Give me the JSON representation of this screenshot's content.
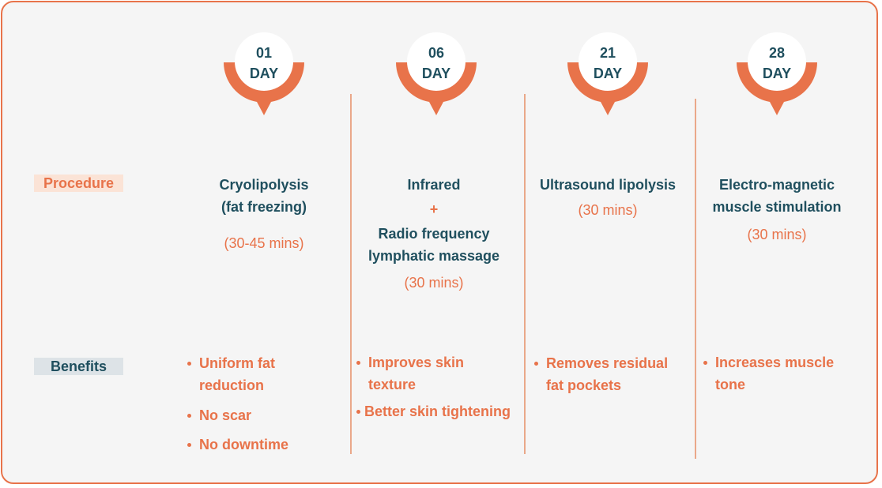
{
  "row_labels": {
    "procedure": "Procedure",
    "benefits": "Benefits"
  },
  "colors": {
    "accent": "#e8734a",
    "dark_teal": "#1f4f5e",
    "panel_bg": "#f5f5f5"
  },
  "columns": [
    {
      "day_number": "01",
      "day_label": "DAY",
      "procedure_lines": [
        "Cryolipolysis",
        "(fat freezing)"
      ],
      "duration": "(30-45 mins)",
      "benefits": [
        "Uniform fat reduction",
        "No scar",
        "No downtime"
      ]
    },
    {
      "day_number": "06",
      "day_label": "DAY",
      "procedure_line1": "Infrared",
      "plus": "+",
      "procedure_line2": "Radio frequency lymphatic massage",
      "duration": "(30 mins)",
      "benefits": [
        "Improves skin texture",
        "Better skin tightening"
      ]
    },
    {
      "day_number": "21",
      "day_label": "DAY",
      "procedure": "Ultrasound lipolysis",
      "duration": "(30 mins)",
      "benefits": [
        "Removes residual fat pockets"
      ]
    },
    {
      "day_number": "28",
      "day_label": "DAY",
      "procedure": "Electro-magnetic muscle stimulation",
      "duration": "(30 mins)",
      "benefits": [
        "Increases muscle tone"
      ]
    }
  ]
}
